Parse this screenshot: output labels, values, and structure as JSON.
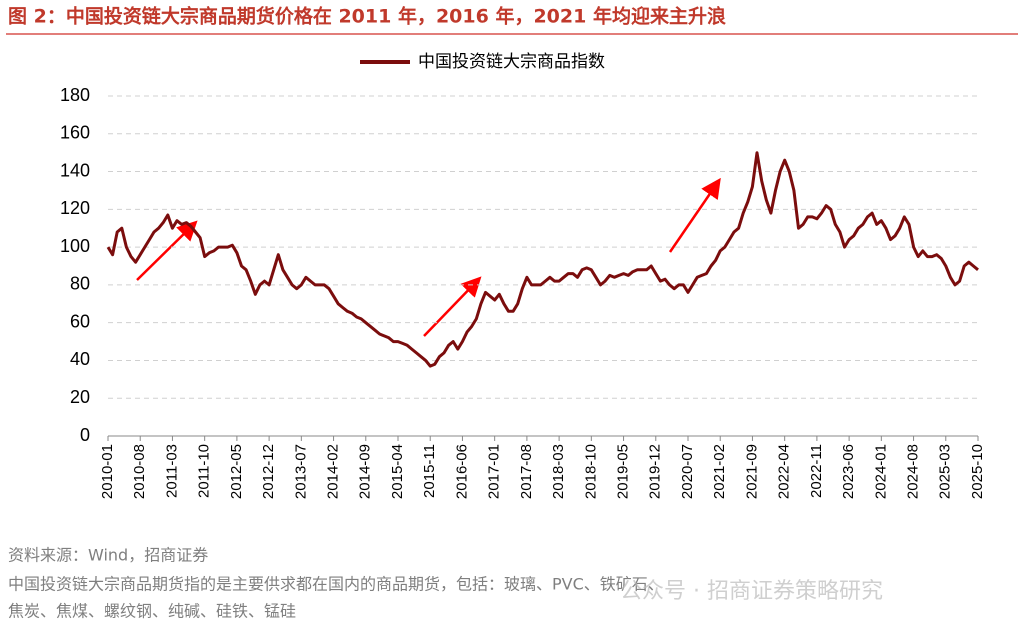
{
  "chart_data": {
    "type": "line",
    "title": "图 2：中国投资链大宗商品期货价格在 2011 年，2016 年，2021 年均迎来主升浪",
    "categories": [
      "2010-01",
      null,
      null,
      null,
      null,
      null,
      null,
      "2010-08",
      null,
      null,
      null,
      null,
      null,
      null,
      "2011-03",
      null,
      null,
      null,
      null,
      null,
      null,
      "2011-10",
      null,
      null,
      null,
      null,
      null,
      null,
      "2012-05",
      null,
      null,
      null,
      null,
      null,
      null,
      "2012-12",
      null,
      null,
      null,
      null,
      null,
      null,
      "2013-07",
      null,
      null,
      null,
      null,
      null,
      null,
      "2014-02",
      null,
      null,
      null,
      null,
      null,
      null,
      "2014-09",
      null,
      null,
      null,
      null,
      null,
      null,
      "2015-04",
      null,
      null,
      null,
      null,
      null,
      null,
      "2015-11",
      null,
      null,
      null,
      null,
      null,
      null,
      "2016-06",
      null,
      null,
      null,
      null,
      null,
      null,
      "2017-01",
      null,
      null,
      null,
      null,
      null,
      null,
      "2017-08",
      null,
      null,
      null,
      null,
      null,
      null,
      "2018-03",
      null,
      null,
      null,
      null,
      null,
      null,
      "2018-10",
      null,
      null,
      null,
      null,
      null,
      null,
      "2019-05",
      null,
      null,
      null,
      null,
      null,
      null,
      "2019-12",
      null,
      null,
      null,
      null,
      null,
      null,
      "2020-07",
      null,
      null,
      null,
      null,
      null,
      null,
      "2021-02",
      null,
      null,
      null,
      null,
      null,
      null,
      "2021-09",
      null,
      null,
      null,
      null,
      null,
      null,
      "2022-04",
      null,
      null,
      null,
      null,
      null,
      null,
      "2022-11",
      null,
      null,
      null,
      null,
      null,
      null,
      "2023-06",
      null,
      null,
      null,
      null,
      null,
      null,
      "2024-01",
      null,
      null,
      null,
      null,
      null,
      null,
      "2024-08",
      null,
      null,
      null,
      null,
      null,
      null,
      "2025-03",
      null,
      null,
      null,
      null,
      null,
      null,
      "2025-10"
    ],
    "series": [
      {
        "name": "中国投资链大宗商品指数",
        "color": "#7b0d0d",
        "values": [
          100,
          96,
          108,
          110,
          100,
          95,
          92,
          96,
          100,
          104,
          108,
          110,
          113,
          117,
          110,
          114,
          112,
          113,
          111,
          108,
          105,
          95,
          97,
          98,
          100,
          100,
          100,
          101,
          97,
          90,
          88,
          82,
          75,
          80,
          82,
          80,
          88,
          96,
          88,
          84,
          80,
          78,
          80,
          84,
          82,
          80,
          80,
          80,
          78,
          74,
          70,
          68,
          66,
          65,
          63,
          62,
          60,
          58,
          56,
          54,
          53,
          52,
          50,
          50,
          49,
          48,
          46,
          44,
          42,
          40,
          37,
          38,
          42,
          44,
          48,
          50,
          46,
          50,
          55,
          58,
          62,
          70,
          76,
          74,
          72,
          75,
          70,
          66,
          66,
          70,
          78,
          84,
          80,
          80,
          80,
          82,
          84,
          82,
          82,
          84,
          86,
          86,
          84,
          88,
          89,
          88,
          84,
          80,
          82,
          85,
          84,
          85,
          86,
          85,
          87,
          88,
          88,
          88,
          90,
          86,
          82,
          83,
          80,
          78,
          80,
          80,
          76,
          80,
          84,
          85,
          86,
          90,
          93,
          98,
          100,
          104,
          108,
          110,
          118,
          124,
          132,
          150,
          135,
          125,
          118,
          130,
          140,
          146,
          140,
          130,
          110,
          112,
          116,
          116,
          115,
          118,
          122,
          120,
          112,
          108,
          100,
          104,
          106,
          110,
          112,
          116,
          118,
          112,
          114,
          110,
          104,
          106,
          110,
          116,
          112,
          100,
          95,
          98,
          95,
          95,
          96,
          94,
          90,
          84,
          80,
          82,
          90,
          92,
          90,
          88
        ]
      }
    ],
    "ylim": [
      0,
      180
    ],
    "yticks": [
      0,
      20,
      40,
      60,
      80,
      100,
      120,
      140,
      160,
      180
    ],
    "grid": true,
    "legend": "top",
    "notes": [
      "资料来源：Wind，招商证券",
      "中国投资链大宗商品期货指的是主要供求都在国内的商品期货，包括：玻璃、PVC、铁矿石、",
      "焦炭、焦煤、螺纹钢、纯碱、硅铁、锰硅"
    ],
    "watermark": "公众号 · 招商证券策略研究"
  }
}
